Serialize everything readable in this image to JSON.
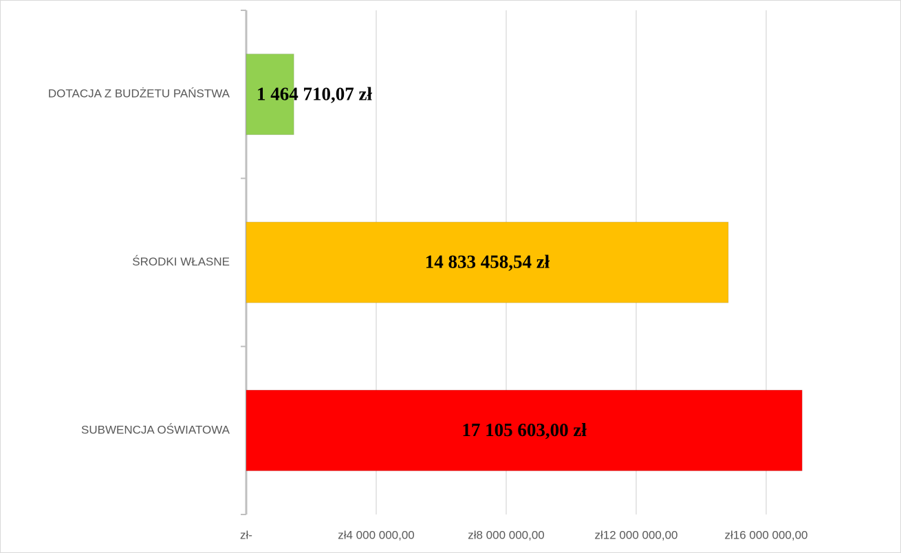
{
  "chart_data": {
    "type": "bar",
    "orientation": "horizontal",
    "categories": [
      "DOTACJA Z BUDŻETU PAŃSTWA",
      "ŚRODKI WŁASNE",
      "SUBWENCJA OŚWIATOWA"
    ],
    "values": [
      1464710.07,
      14833458.54,
      17105603.0
    ],
    "value_labels": [
      "1 464 710,07 zł",
      "14 833 458,54 zł",
      "17 105 603,00 zł"
    ],
    "colors": [
      "#92d050",
      "#ffc000",
      "#ff0000"
    ],
    "xlim": [
      0,
      20000000
    ],
    "xticks": [
      {
        "value": 0,
        "label": "zł-"
      },
      {
        "value": 4000000,
        "label": "zł4 000 000,00"
      },
      {
        "value": 8000000,
        "label": "zł8 000 000,00"
      },
      {
        "value": 12000000,
        "label": "zł12 000 000,00"
      },
      {
        "value": 16000000,
        "label": "zł16 000 000,00"
      }
    ],
    "grid": true
  }
}
